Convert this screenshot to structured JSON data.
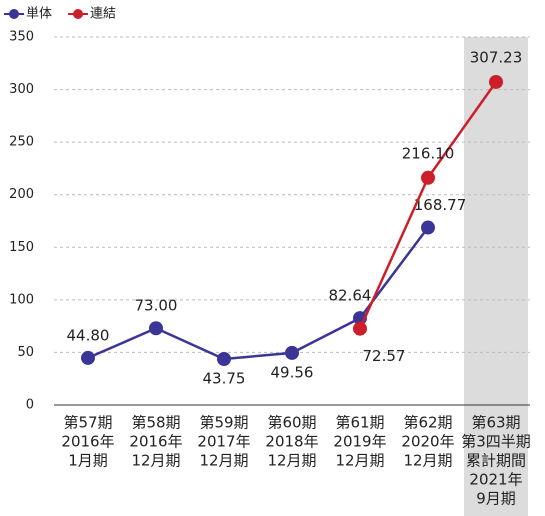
{
  "chart_data": {
    "type": "line",
    "categories": [
      [
        "第57期",
        "2016年",
        "1月期"
      ],
      [
        "第58期",
        "2016年",
        "12月期"
      ],
      [
        "第59期",
        "2017年",
        "12月期"
      ],
      [
        "第60期",
        "2018年",
        "12月期"
      ],
      [
        "第61期",
        "2019年",
        "12月期"
      ],
      [
        "第62期",
        "2020年",
        "12月期"
      ],
      [
        "第63期",
        "第3四半期",
        "累計期間",
        "2021年",
        "9月期"
      ]
    ],
    "series": [
      {
        "name": "単体",
        "color": "#3b3598",
        "values": [
          44.8,
          73.0,
          43.75,
          49.56,
          82.64,
          168.77,
          null
        ],
        "value_labels": [
          "44.80",
          "73.00",
          "43.75",
          "49.56",
          "82.64",
          "168.77",
          null
        ]
      },
      {
        "name": "連結",
        "color": "#cc1f2a",
        "values": [
          null,
          null,
          null,
          null,
          72.57,
          216.1,
          307.23
        ],
        "value_labels": [
          null,
          null,
          null,
          null,
          "72.57",
          "216.10",
          "307.23"
        ]
      }
    ],
    "ylim": [
      0,
      350
    ],
    "yticks": [
      0,
      50,
      100,
      150,
      200,
      250,
      300,
      350
    ],
    "grid": true,
    "legend": "top-left"
  }
}
